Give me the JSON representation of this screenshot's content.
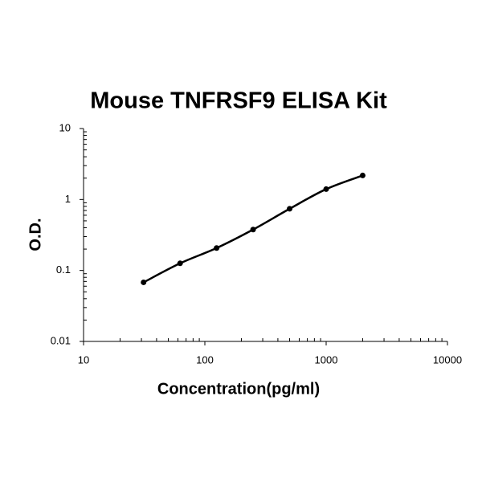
{
  "chart_data": {
    "type": "line",
    "title": "Mouse TNFRSF9 ELISA Kit",
    "xlabel": "Concentration(pg/ml)",
    "ylabel": "O.D.",
    "x": [
      31.25,
      62.5,
      125,
      250,
      500,
      1000,
      2000
    ],
    "series": [
      {
        "color": "#000000",
        "values": [
          0.068,
          0.126,
          0.207,
          0.377,
          0.74,
          1.4,
          2.18
        ]
      }
    ],
    "xscale": "log",
    "yscale": "log",
    "xlim": [
      10,
      10000
    ],
    "xticks": [
      10,
      100,
      1000,
      10000
    ],
    "ylim": [
      0.01,
      10
    ],
    "yticks": [
      0.01,
      0.1,
      1,
      10
    ],
    "grid": false,
    "markers": true,
    "smooth": true
  }
}
